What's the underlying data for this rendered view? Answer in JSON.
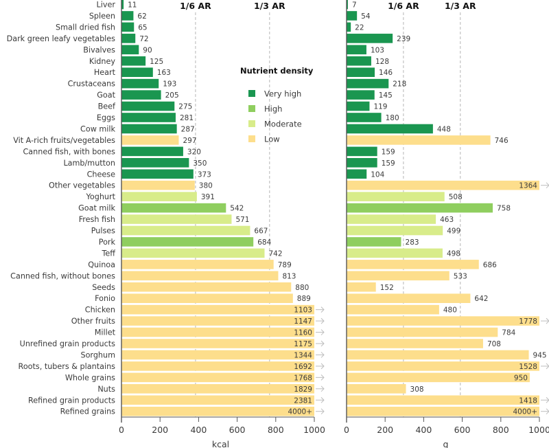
{
  "chart_data": {
    "type": "bar",
    "orientation": "horizontal",
    "title": "",
    "categories": [
      "Liver",
      "Spleen",
      "Small dried fish",
      "Dark green leafy vegetables",
      "Bivalves",
      "Kidney",
      "Heart",
      "Crustaceans",
      "Goat",
      "Beef",
      "Eggs",
      "Cow milk",
      "Vit A-rich fruits/vegetables",
      "Canned fish, with bones",
      "Lamb/mutton",
      "Cheese",
      "Other vegetables",
      "Yoghurt",
      "Goat milk",
      "Fresh fish",
      "Pulses",
      "Pork",
      "Teff",
      "Quinoa",
      "Canned fish, without bones",
      "Seeds",
      "Fonio",
      "Chicken",
      "Other fruits",
      "Millet",
      "Unrefined grain products",
      "Sorghum",
      "Roots, tubers & plantains",
      "Whole grains",
      "Nuts",
      "Refined grain products",
      "Refined grains"
    ],
    "nutrient_density": [
      "Very high",
      "Very high",
      "Very high",
      "Very high",
      "Very high",
      "Very high",
      "Very high",
      "Very high",
      "Very high",
      "Very high",
      "Very high",
      "Very high",
      "Low",
      "Very high",
      "Very high",
      "Very high",
      "Low",
      "Moderate",
      "High",
      "Moderate",
      "Moderate",
      "High",
      "Moderate",
      "Low",
      "Low",
      "Low",
      "Low",
      "Low",
      "Low",
      "Low",
      "Low",
      "Low",
      "Low",
      "Low",
      "Low",
      "Low",
      "Low"
    ],
    "panels": [
      {
        "name": "energy",
        "xlabel": "kcal",
        "xlim": [
          0,
          1000
        ],
        "xticks": [
          "0",
          "200",
          "400",
          "600",
          "800",
          "1000"
        ],
        "reference_lines": [
          {
            "label": "1/6 AR",
            "value": 384
          },
          {
            "label": "1/3 AR",
            "value": 768
          }
        ],
        "values": [
          11,
          62,
          65,
          72,
          90,
          125,
          163,
          193,
          205,
          275,
          281,
          287,
          297,
          320,
          350,
          373,
          380,
          391,
          542,
          571,
          667,
          684,
          742,
          789,
          813,
          880,
          889,
          1103,
          1147,
          1160,
          1175,
          1344,
          1692,
          1768,
          1829,
          2381,
          4000
        ],
        "value_labels": [
          "11",
          "62",
          "65",
          "72",
          "90",
          "125",
          "163",
          "193",
          "205",
          "275",
          "281",
          "287",
          "297",
          "320",
          "350",
          "373",
          "380",
          "391",
          "542",
          "571",
          "667",
          "684",
          "742",
          "789",
          "813",
          "880",
          "889",
          "1103",
          "1147",
          "1160",
          "1175",
          "1344",
          "1692",
          "1768",
          "1829",
          "2381",
          "4000+"
        ]
      },
      {
        "name": "weight",
        "xlabel": "g",
        "xlim": [
          0,
          1000
        ],
        "xticks": [
          "0",
          "200",
          "400",
          "600",
          "800",
          "1000"
        ],
        "reference_lines": [
          {
            "label": "1/6 AR",
            "value": 295
          },
          {
            "label": "1/3 AR",
            "value": 590
          }
        ],
        "values": [
          7,
          54,
          22,
          239,
          103,
          128,
          146,
          218,
          145,
          119,
          180,
          448,
          746,
          159,
          159,
          104,
          1364,
          508,
          758,
          463,
          499,
          283,
          498,
          686,
          533,
          152,
          642,
          480,
          1778,
          784,
          708,
          945,
          1528,
          950,
          308,
          1418,
          4000
        ],
        "value_labels": [
          "7",
          "54",
          "22",
          "239",
          "103",
          "128",
          "146",
          "218",
          "145",
          "119",
          "180",
          "448",
          "746",
          "159",
          "159",
          "104",
          "1364",
          "508",
          "758",
          "463",
          "499",
          "283",
          "498",
          "686",
          "533",
          "152",
          "642",
          "480",
          "1778",
          "784",
          "708",
          "945",
          "1528",
          "950",
          "308",
          "1418",
          "4000+"
        ]
      }
    ],
    "legend": {
      "title": "Nutrient density",
      "placement": "inside-left-panel-top-right",
      "entries": [
        {
          "label": "Very high",
          "color": "#1a9650"
        },
        {
          "label": "High",
          "color": "#8fce5f"
        },
        {
          "label": "Moderate",
          "color": "#d8ec8a"
        },
        {
          "label": "Low",
          "color": "#fdde8c"
        }
      ]
    },
    "overflow_marker": "→",
    "grid": false
  }
}
